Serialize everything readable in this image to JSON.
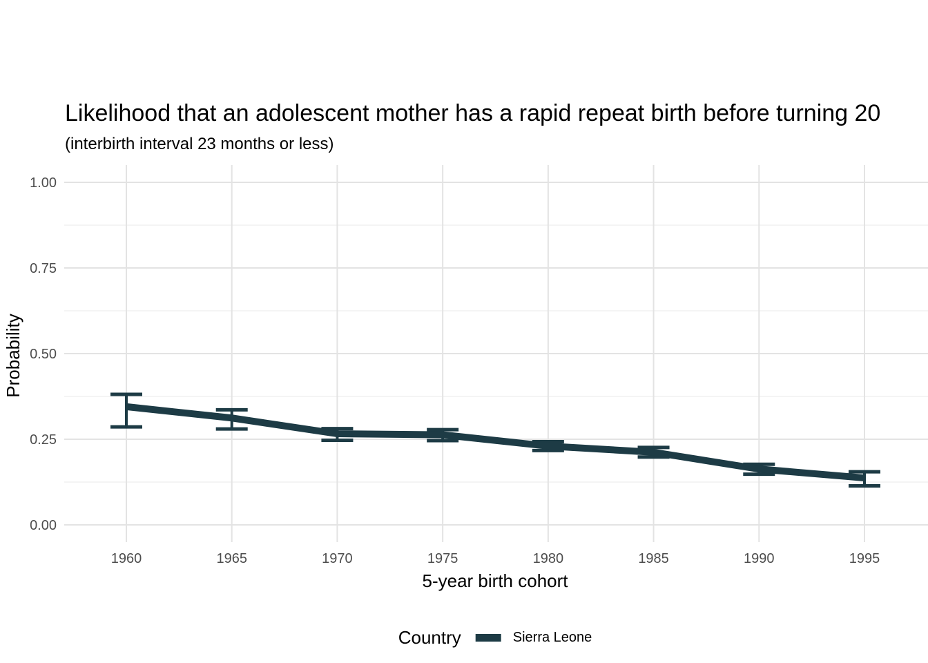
{
  "colors": {
    "background": "#ffffff",
    "grid_major": "#e3e3e3",
    "grid_minor": "#f0f0f0",
    "tick_label": "#4d4d4d",
    "text": "#000000",
    "series": "#1d3b45"
  },
  "chart_data": {
    "type": "line",
    "title": "Likelihood that an adolescent mother has a rapid repeat birth before turning 20",
    "subtitle": "(interbirth interval 23 months or less)",
    "xlabel": "5-year birth cohort",
    "ylabel": "Probability",
    "legend_title": "Country",
    "legend_position": "bottom",
    "grid": "on",
    "xlim": [
      1960,
      1995
    ],
    "ylim": [
      0,
      1
    ],
    "x": [
      1960,
      1965,
      1970,
      1975,
      1980,
      1985,
      1990,
      1995
    ],
    "x_tick_labels": [
      "1960",
      "1965",
      "1970",
      "1975",
      "1980",
      "1985",
      "1990",
      "1995"
    ],
    "y_ticks": [
      0,
      0.25,
      0.5,
      0.75,
      1
    ],
    "y_tick_labels": [
      "0.00",
      "0.25",
      "0.50",
      "0.75",
      "1.00"
    ],
    "y_minor_ticks": [
      0.125,
      0.375,
      0.625,
      0.875
    ],
    "series": [
      {
        "name": "Sierra Leone",
        "color": "#1d3b45",
        "values": [
          0.345,
          0.312,
          0.266,
          0.263,
          0.23,
          0.212,
          0.163,
          0.137
        ],
        "ci_low": [
          0.286,
          0.28,
          0.247,
          0.246,
          0.217,
          0.198,
          0.148,
          0.114
        ],
        "ci_high": [
          0.381,
          0.336,
          0.281,
          0.278,
          0.243,
          0.226,
          0.177,
          0.155
        ]
      }
    ]
  }
}
